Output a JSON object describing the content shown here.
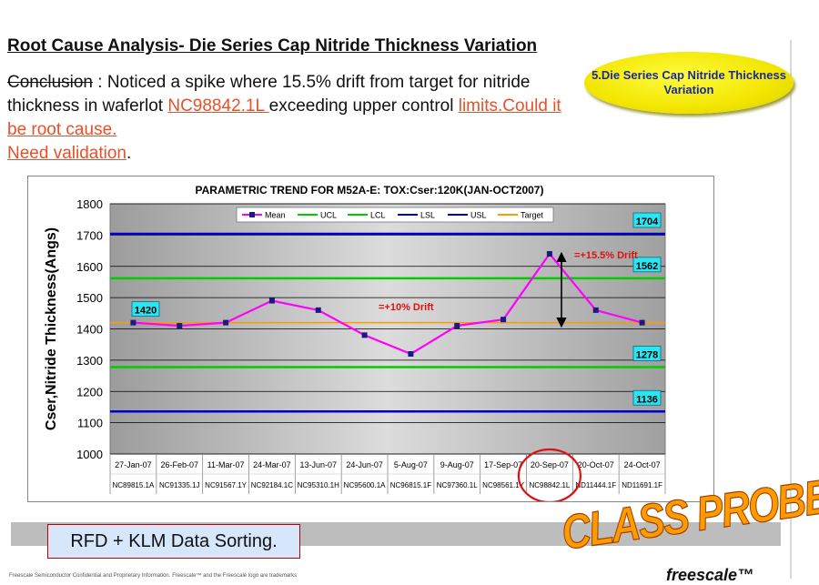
{
  "slide": {
    "title": "Root Cause Analysis- Die  Series Cap Nitride Thickness Variation",
    "conclusion": {
      "label_struck": "Conclusion",
      "text1": " : Noticed a spike where 15.5% drift from target  for nitride thickness in waferlot ",
      "lot": "NC98842.1L ",
      "text2": " exceeding upper control ",
      "link": "limits.Could it be root cause.",
      "link2": "Need validation",
      "end": "."
    },
    "callout": "5.Die Series Cap Nitride Thickness Variation",
    "rfd_box": "RFD + KLM  Data Sorting.",
    "stamp": "CLASS PROBE-EKB",
    "brand": "freescale™",
    "confidential": "Freescale Semiconductor Confidential and Proprietary Information. Freescale™ and the Freescale logo are trademarks"
  },
  "colors": {
    "mean": "#ff00ff",
    "spec": "#00cc00",
    "limits": "#0000cc",
    "target": "#ff9900",
    "plot_bg": "#c8c8c8",
    "highlight": "#e01010"
  },
  "chart_data": {
    "type": "line",
    "title": "PARAMETRIC TREND FOR M52A-E: TOX:Cser:120K(JAN-OCT2007)",
    "ylabel": "Cser,Nitride Thickness(Angs)",
    "xlabel": "",
    "ylim": [
      1000,
      1800
    ],
    "yticks": [
      1000,
      1100,
      1200,
      1300,
      1400,
      1500,
      1600,
      1700,
      1800
    ],
    "grid": true,
    "legend_position": "top",
    "categories": [
      "27-Jan-07",
      "26-Feb-07",
      "11-Mar-07",
      "24-Mar-07",
      "13-Jun-07",
      "24-Jun-07",
      "5-Aug-07",
      "9-Aug-07",
      "17-Sep-07",
      "20-Sep-07",
      "20-Oct-07",
      "24-Oct-07"
    ],
    "lots": [
      "NC89815.1A",
      "NC91335.1J",
      "NC91567.1Y",
      "NC92184.1C",
      "NC95310.1H",
      "NC95600.1A",
      "NC96815.1F",
      "NC97360.1L",
      "NC98561.1Y",
      "NC98842.1L",
      "ND11444.1F",
      "ND11691.1F"
    ],
    "series": [
      {
        "name": "Mean",
        "values": [
          1420,
          1410,
          1420,
          1490,
          1460,
          1380,
          1320,
          1410,
          1430,
          1640,
          1460,
          1420
        ]
      },
      {
        "name": "UCL",
        "values": [
          1562,
          1562,
          1562,
          1562,
          1562,
          1562,
          1562,
          1562,
          1562,
          1562,
          1562,
          1562
        ]
      },
      {
        "name": "LCL",
        "values": [
          1278,
          1278,
          1278,
          1278,
          1278,
          1278,
          1278,
          1278,
          1278,
          1278,
          1278,
          1278
        ]
      },
      {
        "name": "LSL",
        "values": [
          1136,
          1136,
          1136,
          1136,
          1136,
          1136,
          1136,
          1136,
          1136,
          1136,
          1136,
          1136
        ]
      },
      {
        "name": "USL",
        "values": [
          1704,
          1704,
          1704,
          1704,
          1704,
          1704,
          1704,
          1704,
          1704,
          1704,
          1704,
          1704
        ]
      },
      {
        "name": "Target",
        "values": [
          1420,
          1420,
          1420,
          1420,
          1420,
          1420,
          1420,
          1420,
          1420,
          1420,
          1420,
          1420
        ]
      }
    ],
    "value_labels": [
      "1704",
      "1562",
      "1420",
      "1278",
      "1136"
    ],
    "annotations": [
      "=+15.5% Drift",
      "=+10% Drift"
    ]
  }
}
